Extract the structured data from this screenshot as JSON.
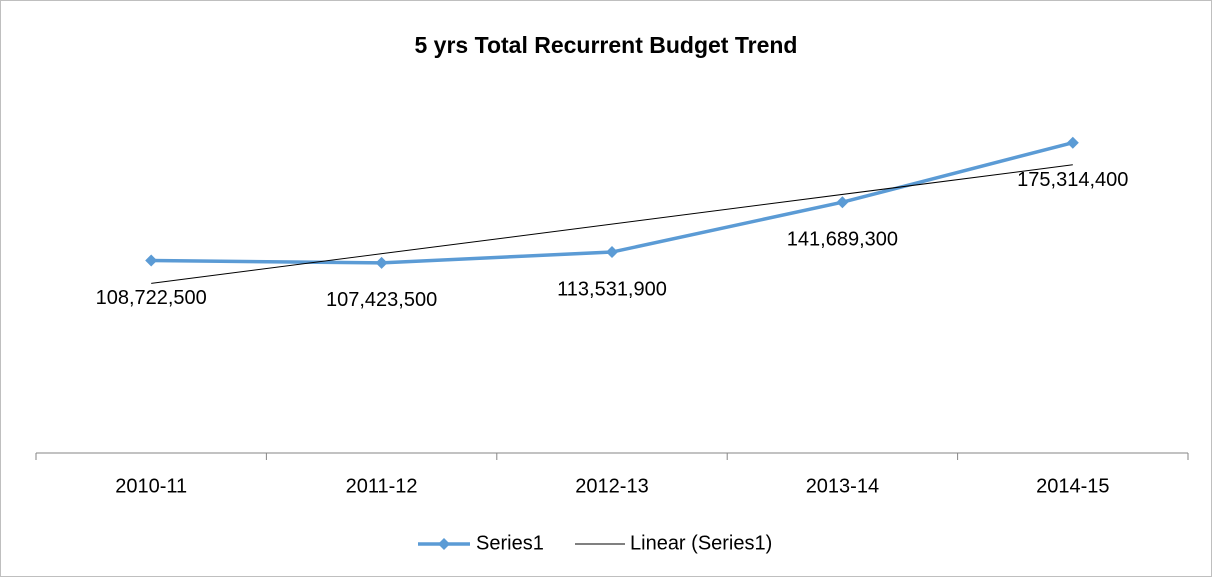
{
  "chart_data": {
    "type": "line",
    "title": "5 yrs Total Recurrent Budget Trend",
    "categories": [
      "2010-11",
      "2011-12",
      "2012-13",
      "2013-14",
      "2014-15"
    ],
    "series": [
      {
        "name": "Series1",
        "color": "#5b9bd5",
        "values": [
          108722500,
          107423500,
          113531900,
          141689300,
          175314400
        ],
        "value_labels": [
          "108,722,500",
          "107,423,500",
          "113,531,900",
          "141,689,300",
          "175,314,400"
        ]
      }
    ],
    "trendline": {
      "name": "Linear (Series1)",
      "color": "#000000"
    },
    "ylim": [
      0,
      200000000
    ],
    "legend": "bottom"
  }
}
